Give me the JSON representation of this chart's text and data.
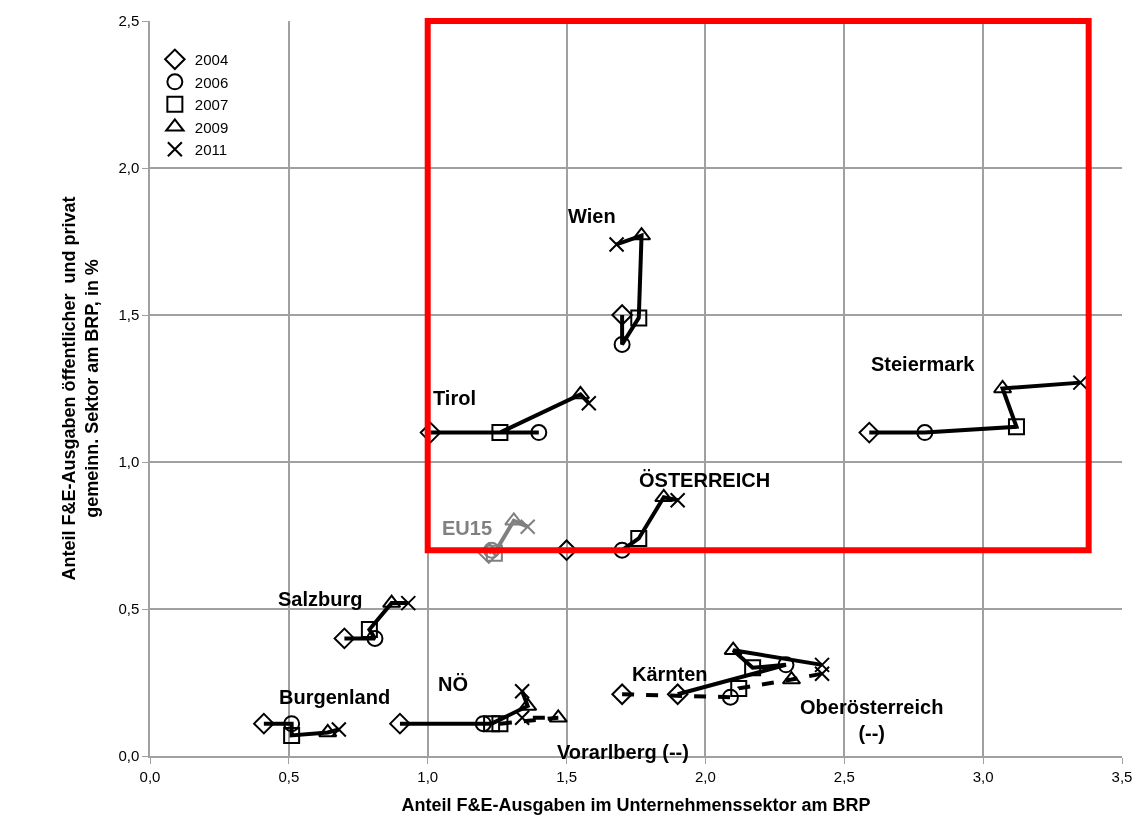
{
  "chart_data": {
    "type": "scatter",
    "xlabel": "Anteil F&E-Ausgaben im Unternehmenssektor am BRP",
    "ylabel": "Anteil F&E-Ausgaben öffentlicher  und privat\ngemeinn. Sektor am BRP, in %",
    "xlim": [
      0,
      3.5
    ],
    "xticks": [
      {
        "value": 0,
        "label": "0,0"
      },
      {
        "value": 0.5,
        "label": "0,5"
      },
      {
        "value": 1,
        "label": "1,0"
      },
      {
        "value": 1.5,
        "label": "1,5"
      },
      {
        "value": 2,
        "label": "2,0"
      },
      {
        "value": 2.5,
        "label": "2,5"
      },
      {
        "value": 3,
        "label": "3,0"
      },
      {
        "value": 3.5,
        "label": "3,5"
      }
    ],
    "ylim": [
      0,
      2.5
    ],
    "yticks": [
      {
        "value": 0,
        "label": "0,0"
      },
      {
        "value": 0.5,
        "label": "0,5"
      },
      {
        "value": 1,
        "label": "1,0"
      },
      {
        "value": 1.5,
        "label": "1,5"
      },
      {
        "value": 2,
        "label": "2,0"
      },
      {
        "value": 2.5,
        "label": "2,5"
      }
    ],
    "grid": true,
    "legend": "top left",
    "series": [
      {
        "type": "line",
        "name": "Wien",
        "color": "#000000",
        "marker": "none",
        "line_style": "solid",
        "x": [
          1.7,
          1.7,
          1.76,
          1.77,
          1.68
        ],
        "values": [
          1.5,
          1.4,
          1.49,
          1.77,
          1.74
        ]
      },
      {
        "type": "line",
        "name": "Tirol",
        "color": "#000000",
        "marker": "none",
        "line_style": "solid",
        "x": [
          1.01,
          1.4,
          1.26,
          1.55,
          1.58
        ],
        "values": [
          1.1,
          1.1,
          1.1,
          1.23,
          1.2
        ]
      },
      {
        "type": "line",
        "name": "Steiermark",
        "color": "#000000",
        "marker": "none",
        "line_style": "solid",
        "x": [
          2.59,
          2.79,
          3.12,
          3.07,
          3.35
        ],
        "values": [
          1.1,
          1.1,
          1.12,
          1.25,
          1.27
        ]
      },
      {
        "type": "line",
        "name": "ÖSTERREICH",
        "color": "#000000",
        "marker": "none",
        "line_style": "solid",
        "x": [
          1.5,
          1.7,
          1.76,
          1.85,
          1.9
        ],
        "values": [
          0.7,
          0.7,
          0.74,
          0.88,
          0.87
        ]
      },
      {
        "type": "line",
        "name": "EU15",
        "color": "#808080",
        "marker": "none",
        "line_style": "solid",
        "x": [
          1.22,
          1.23,
          1.24,
          1.31,
          1.36
        ],
        "values": [
          0.69,
          0.7,
          0.69,
          0.8,
          0.78
        ]
      },
      {
        "type": "line",
        "name": "Salzburg",
        "color": "#000000",
        "marker": "none",
        "line_style": "solid",
        "x": [
          0.7,
          0.81,
          0.79,
          0.87,
          0.93
        ],
        "values": [
          0.4,
          0.4,
          0.43,
          0.52,
          0.52
        ]
      },
      {
        "type": "line",
        "name": "Burgenland",
        "color": "#000000",
        "marker": "none",
        "line_style": "solid",
        "x": [
          0.41,
          0.51,
          0.51,
          0.64,
          0.68
        ],
        "values": [
          0.11,
          0.11,
          0.07,
          0.08,
          0.09
        ]
      },
      {
        "type": "line",
        "name": "NÖ",
        "color": "#000000",
        "marker": "none",
        "line_style": "solid",
        "x": [
          0.9,
          1.2,
          1.23,
          1.36,
          1.34
        ],
        "values": [
          0.11,
          0.11,
          0.11,
          0.17,
          0.22
        ]
      },
      {
        "type": "line",
        "name": "Vorarlberg (--)",
        "color": "#000000",
        "marker": "none",
        "line_style": "dashed",
        "x": [
          1.26,
          1.47,
          1.34
        ],
        "values": [
          0.11,
          0.13,
          0.13
        ]
      },
      {
        "type": "line",
        "name": "Kärnten",
        "color": "#000000",
        "marker": "none",
        "line_style": "solid",
        "x": [
          1.9,
          2.29,
          2.17,
          2.1,
          2.42
        ],
        "values": [
          0.21,
          0.31,
          0.3,
          0.36,
          0.31
        ]
      },
      {
        "type": "line",
        "name": "Oberösterreich\n(--)",
        "color": "#000000",
        "marker": "none",
        "line_style": "dashed",
        "x": [
          1.7,
          2.09,
          2.12,
          2.31,
          2.42
        ],
        "values": [
          0.21,
          0.2,
          0.23,
          0.26,
          0.28
        ]
      },
      {
        "name": "2004",
        "marker": "diamond",
        "color": "#000000",
        "colors": [
          "#000000",
          "#000000",
          "#000000",
          "#000000",
          "#808080",
          "#000000",
          "#000000",
          "#000000",
          "#000000",
          "#000000"
        ],
        "x": [
          1.7,
          1.01,
          2.59,
          1.5,
          1.22,
          0.7,
          0.41,
          0.9,
          1.9,
          1.7
        ],
        "values": [
          1.5,
          1.1,
          1.1,
          0.7,
          0.69,
          0.4,
          0.11,
          0.11,
          0.21,
          0.21
        ]
      },
      {
        "name": "2006",
        "marker": "circle",
        "color": "#000000",
        "colors": [
          "#000000",
          "#000000",
          "#000000",
          "#000000",
          "#808080",
          "#000000",
          "#000000",
          "#000000",
          "#000000",
          "#000000"
        ],
        "x": [
          1.7,
          1.4,
          2.79,
          1.7,
          1.23,
          0.81,
          0.51,
          1.2,
          2.29,
          2.09
        ],
        "values": [
          1.4,
          1.1,
          1.1,
          0.7,
          0.7,
          0.4,
          0.11,
          0.11,
          0.31,
          0.2
        ]
      },
      {
        "name": "2007",
        "marker": "square",
        "color": "#000000",
        "colors": [
          "#000000",
          "#000000",
          "#000000",
          "#000000",
          "#808080",
          "#000000",
          "#000000",
          "#000000",
          "#000000",
          "#000000",
          "#000000"
        ],
        "x": [
          1.76,
          1.26,
          3.12,
          1.76,
          1.24,
          0.79,
          0.51,
          1.23,
          1.26,
          2.17,
          2.12
        ],
        "values": [
          1.49,
          1.1,
          1.12,
          0.74,
          0.69,
          0.43,
          0.07,
          0.11,
          0.11,
          0.3,
          0.23
        ]
      },
      {
        "name": "2009",
        "marker": "triangle",
        "color": "#000000",
        "colors": [
          "#000000",
          "#000000",
          "#000000",
          "#000000",
          "#808080",
          "#000000",
          "#000000",
          "#000000",
          "#000000",
          "#000000",
          "#000000"
        ],
        "x": [
          1.77,
          1.55,
          3.07,
          1.85,
          1.31,
          0.87,
          0.64,
          1.36,
          1.47,
          2.1,
          2.31
        ],
        "values": [
          1.77,
          1.23,
          1.25,
          0.88,
          0.8,
          0.52,
          0.08,
          0.17,
          0.13,
          0.36,
          0.26
        ]
      },
      {
        "name": "2011",
        "marker": "cross",
        "color": "#000000",
        "colors": [
          "#000000",
          "#000000",
          "#000000",
          "#000000",
          "#808080",
          "#000000",
          "#000000",
          "#000000",
          "#000000",
          "#000000",
          "#000000"
        ],
        "x": [
          1.68,
          1.58,
          3.35,
          1.9,
          1.36,
          0.93,
          0.68,
          1.34,
          1.34,
          2.42,
          2.42
        ],
        "values": [
          1.74,
          1.2,
          1.27,
          0.87,
          0.78,
          0.52,
          0.09,
          0.22,
          0.13,
          0.31,
          0.28
        ]
      }
    ]
  }
}
